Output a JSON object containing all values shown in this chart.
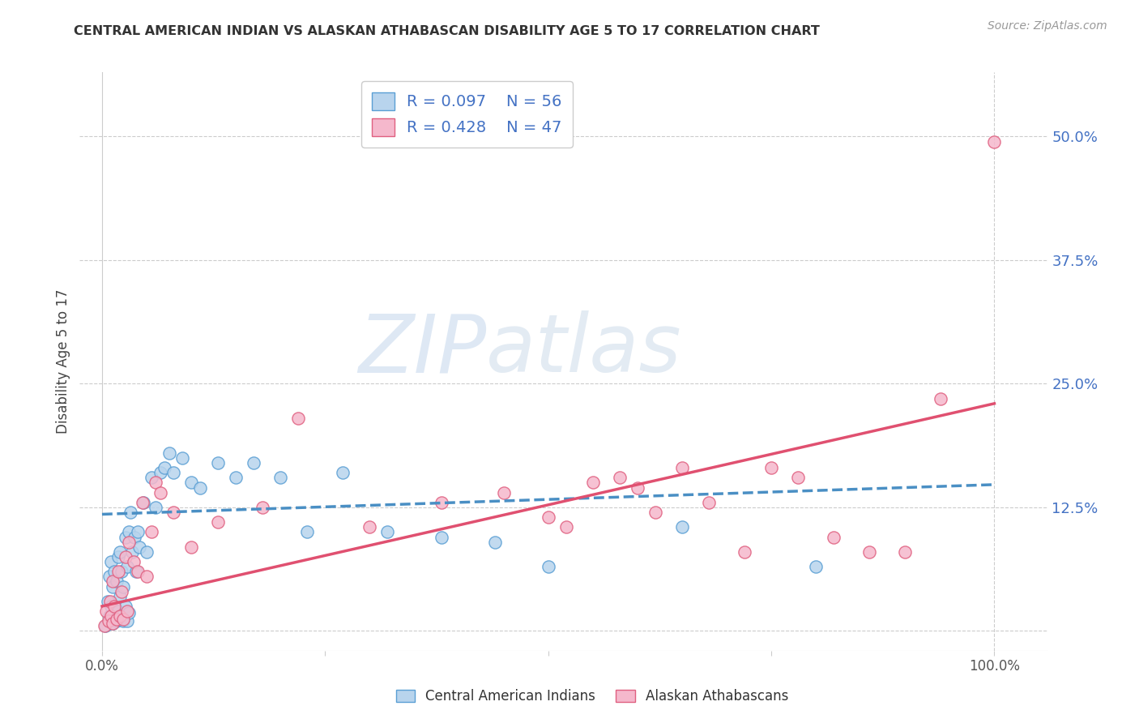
{
  "title": "CENTRAL AMERICAN INDIAN VS ALASKAN ATHABASCAN DISABILITY AGE 5 TO 17 CORRELATION CHART",
  "source": "Source: ZipAtlas.com",
  "ylabel": "Disability Age 5 to 17",
  "blue_R": "0.097",
  "blue_N": "56",
  "pink_R": "0.428",
  "pink_N": "47",
  "xlim": [
    -0.025,
    1.06
  ],
  "ylim": [
    -0.02,
    0.565
  ],
  "watermark_top": "ZIP",
  "watermark_bot": "atlas",
  "blue_fill": "#b8d4ed",
  "pink_fill": "#f5b8cc",
  "blue_edge": "#5a9fd4",
  "pink_edge": "#e06080",
  "blue_line": "#4a8fc4",
  "pink_line": "#e05070",
  "grid_color": "#cccccc",
  "title_color": "#333333",
  "source_color": "#999999",
  "tick_color_y": "#4472c4",
  "tick_color_x": "#555555",
  "ytick_vals": [
    0.0,
    0.125,
    0.25,
    0.375,
    0.5
  ],
  "ytick_labels": [
    "",
    "12.5%",
    "25.0%",
    "37.5%",
    "50.0%"
  ],
  "xtick_vals": [
    0.0,
    0.25,
    0.5,
    0.75,
    1.0
  ],
  "xtick_labels": [
    "0.0%",
    "",
    "",
    "",
    "100.0%"
  ],
  "blue_scatter_x": [
    0.004,
    0.006,
    0.008,
    0.008,
    0.01,
    0.01,
    0.012,
    0.012,
    0.014,
    0.014,
    0.016,
    0.016,
    0.018,
    0.018,
    0.02,
    0.02,
    0.02,
    0.022,
    0.022,
    0.024,
    0.024,
    0.026,
    0.026,
    0.028,
    0.028,
    0.03,
    0.03,
    0.032,
    0.034,
    0.036,
    0.038,
    0.04,
    0.042,
    0.046,
    0.05,
    0.055,
    0.06,
    0.065,
    0.07,
    0.075,
    0.08,
    0.09,
    0.1,
    0.11,
    0.13,
    0.15,
    0.17,
    0.2,
    0.23,
    0.27,
    0.32,
    0.38,
    0.44,
    0.5,
    0.65,
    0.8
  ],
  "blue_scatter_y": [
    0.005,
    0.03,
    0.015,
    0.055,
    0.025,
    0.07,
    0.008,
    0.045,
    0.018,
    0.06,
    0.01,
    0.05,
    0.02,
    0.075,
    0.012,
    0.035,
    0.08,
    0.015,
    0.06,
    0.01,
    0.045,
    0.025,
    0.095,
    0.01,
    0.065,
    0.018,
    0.1,
    0.12,
    0.08,
    0.095,
    0.06,
    0.1,
    0.085,
    0.13,
    0.08,
    0.155,
    0.125,
    0.16,
    0.165,
    0.18,
    0.16,
    0.175,
    0.15,
    0.145,
    0.17,
    0.155,
    0.17,
    0.155,
    0.1,
    0.16,
    0.1,
    0.095,
    0.09,
    0.065,
    0.105,
    0.065
  ],
  "pink_scatter_x": [
    0.003,
    0.005,
    0.007,
    0.009,
    0.01,
    0.012,
    0.012,
    0.014,
    0.016,
    0.018,
    0.02,
    0.022,
    0.024,
    0.026,
    0.028,
    0.03,
    0.035,
    0.04,
    0.045,
    0.05,
    0.055,
    0.06,
    0.065,
    0.08,
    0.1,
    0.13,
    0.18,
    0.22,
    0.3,
    0.38,
    0.45,
    0.5,
    0.52,
    0.55,
    0.58,
    0.6,
    0.62,
    0.65,
    0.68,
    0.72,
    0.75,
    0.78,
    0.82,
    0.86,
    0.9,
    0.94,
    1.0
  ],
  "pink_scatter_y": [
    0.005,
    0.02,
    0.01,
    0.03,
    0.015,
    0.008,
    0.05,
    0.025,
    0.012,
    0.06,
    0.015,
    0.04,
    0.012,
    0.075,
    0.02,
    0.09,
    0.07,
    0.06,
    0.13,
    0.055,
    0.1,
    0.15,
    0.14,
    0.12,
    0.085,
    0.11,
    0.125,
    0.215,
    0.105,
    0.13,
    0.14,
    0.115,
    0.105,
    0.15,
    0.155,
    0.145,
    0.12,
    0.165,
    0.13,
    0.08,
    0.165,
    0.155,
    0.095,
    0.08,
    0.08,
    0.235,
    0.495
  ],
  "blue_trend_x": [
    0.0,
    1.0
  ],
  "blue_trend_y": [
    0.118,
    0.148
  ],
  "pink_trend_x": [
    0.0,
    1.0
  ],
  "pink_trend_y": [
    0.025,
    0.23
  ],
  "legend_label_blue": "Central American Indians",
  "legend_label_pink": "Alaskan Athabascans"
}
